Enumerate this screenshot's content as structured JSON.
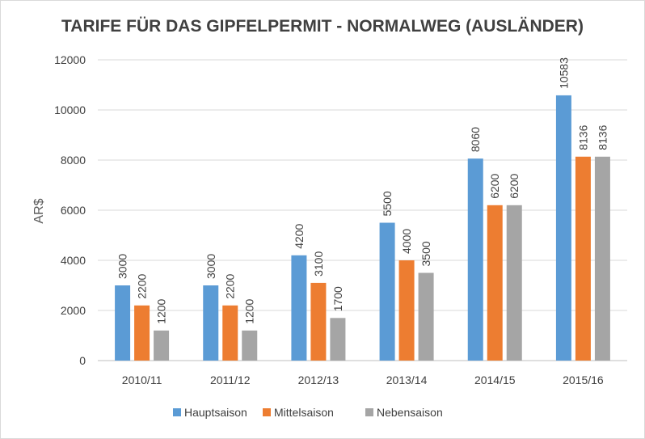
{
  "chart_data": {
    "type": "bar",
    "title": "TARIFE FÜR DAS GIPFELPERMIT - NORMALWEG (AUSLÄNDER)",
    "xlabel": "",
    "ylabel": "AR$",
    "ylim": [
      0,
      12000
    ],
    "yticks": [
      "0",
      "2000",
      "4000",
      "6000",
      "8000",
      "10000",
      "12000"
    ],
    "categories": [
      "2010/11",
      "2011/12",
      "2012/13",
      "2013/14",
      "2014/15",
      "2015/16"
    ],
    "series": [
      {
        "name": "Hauptsaison",
        "color": "#5b9bd5",
        "values": [
          3000,
          3000,
          4200,
          5500,
          8060,
          10583
        ]
      },
      {
        "name": "Mittelsaison",
        "color": "#ed7d31",
        "values": [
          2200,
          2200,
          3100,
          4000,
          6200,
          8136
        ]
      },
      {
        "name": "Nebensaison",
        "color": "#a5a5a5",
        "values": [
          1200,
          1200,
          1700,
          3500,
          6200,
          8136
        ]
      }
    ],
    "grid": true,
    "legend": "bottom"
  }
}
